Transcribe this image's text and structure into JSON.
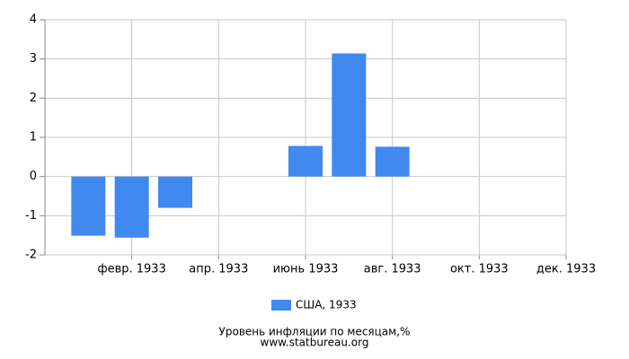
{
  "chart_data": {
    "type": "bar",
    "title": "Уровень инфляции по месяцам,%",
    "source": "www.statbureau.org",
    "categories": [
      null,
      "февр. 1933",
      null,
      "апр. 1933",
      null,
      "июнь 1933",
      null,
      "авг. 1933",
      null,
      "окт. 1933",
      null,
      "дек. 1933"
    ],
    "series": [
      {
        "name": "США, 1933",
        "color": "#4189ee",
        "values": [
          -1.51,
          -1.56,
          -0.8,
          null,
          null,
          0.78,
          3.14,
          0.76,
          null,
          null,
          null,
          null
        ]
      }
    ],
    "ylim": [
      -2,
      4
    ],
    "yticks": [
      -2,
      -1,
      0,
      1,
      2,
      3,
      4
    ],
    "grid": true,
    "legend": "bottom"
  }
}
